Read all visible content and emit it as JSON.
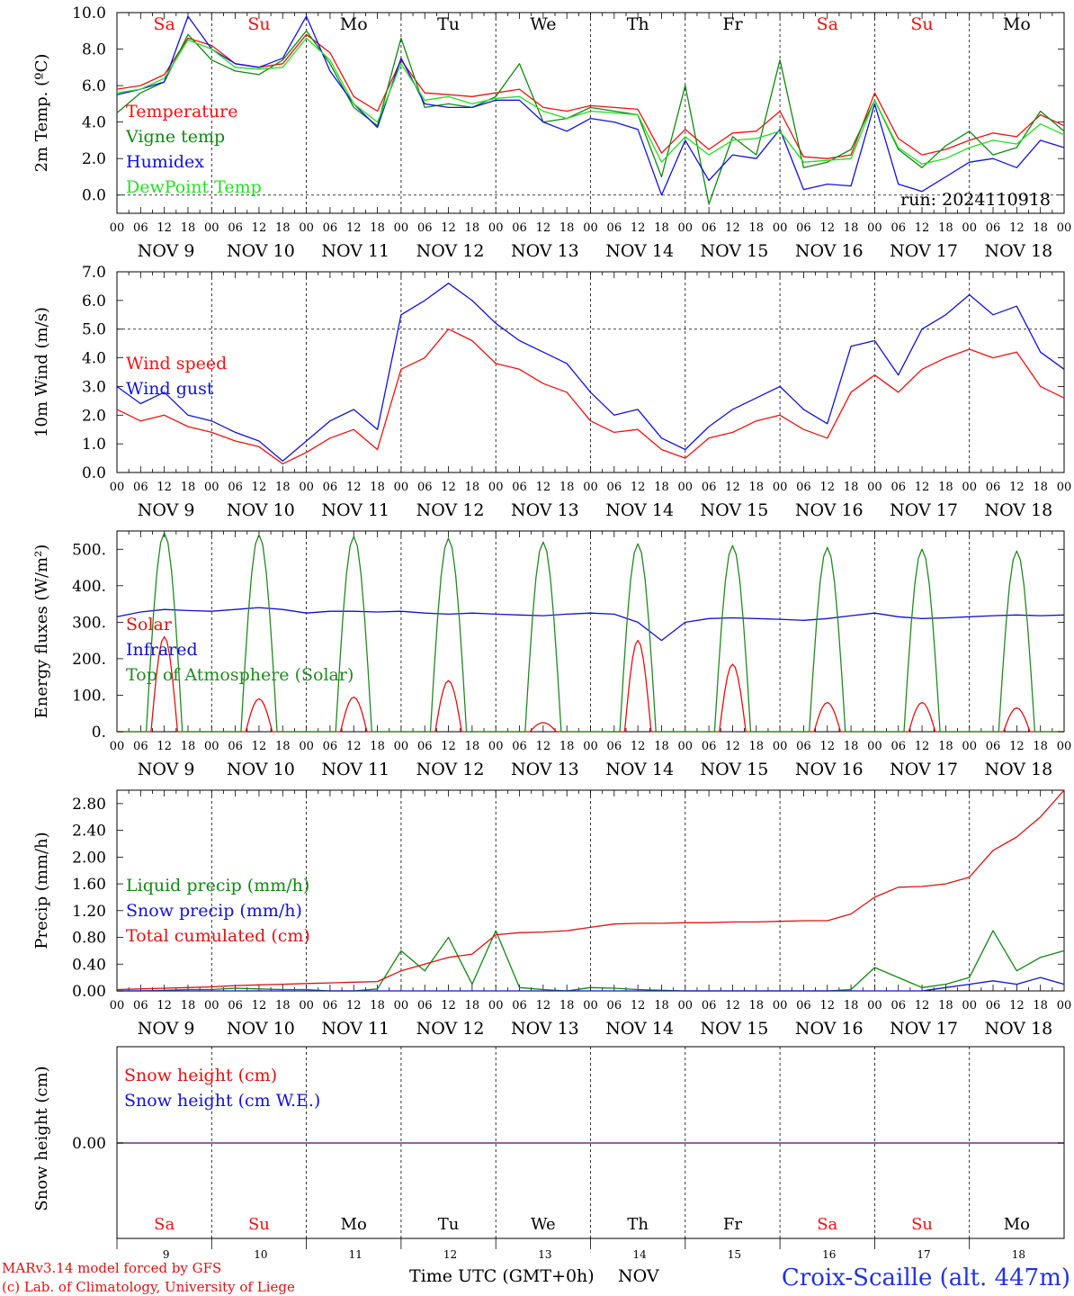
{
  "colors": {
    "temp": "#ee1111",
    "vigne": "#118811",
    "humidex": "#1111dd",
    "dewpoint": "#22dd22",
    "solar": "#dd1111",
    "infrared": "#1111cc",
    "toa": "#228822",
    "liquid": "#118811",
    "snowp": "#1111dd",
    "cum": "#dd1111",
    "snowh": "#dd1111",
    "snowwe": "#1111dd",
    "weekend": "#ee1111",
    "weekday": "#000000"
  },
  "days": {
    "abbr": [
      "Sa",
      "Su",
      "Mo",
      "Tu",
      "We",
      "Th",
      "Fr",
      "Sa",
      "Su",
      "Mo"
    ],
    "weekend": [
      true,
      true,
      false,
      false,
      false,
      false,
      false,
      true,
      true,
      false
    ],
    "dates": [
      "NOV  9",
      "NOV 10",
      "NOV 11",
      "NOV 12",
      "NOV 13",
      "NOV 14",
      "NOV 15",
      "NOV 16",
      "NOV 17",
      "NOV 18"
    ],
    "nums": [
      "9",
      "10",
      "11",
      "12",
      "13",
      "14",
      "15",
      "16",
      "17",
      "18"
    ],
    "hours": [
      "00",
      "06",
      "12",
      "18"
    ],
    "end_hour": "00"
  },
  "chart_data": [
    {
      "type": "line",
      "ylabel": "2m Temp. (ºC)",
      "ylim": [
        -1,
        10
      ],
      "yticks": [
        "10.0",
        "8.0",
        "6.0",
        "4.0",
        "2.0",
        "0.0"
      ],
      "ytick_values": [
        10,
        8,
        6,
        4,
        2,
        0
      ],
      "ref_line": 0,
      "annotation": "run: 2024110918",
      "series": [
        {
          "name": "Temperature",
          "color": "temp",
          "values": [
            5.8,
            6.0,
            6.6,
            8.6,
            8.2,
            7.2,
            7.0,
            7.2,
            8.8,
            7.8,
            5.4,
            4.6,
            7.4,
            5.6,
            5.5,
            5.4,
            5.6,
            5.8,
            4.8,
            4.6,
            4.9,
            4.8,
            4.7,
            2.3,
            3.6,
            2.5,
            3.4,
            3.5,
            4.6,
            2.1,
            2.0,
            2.2,
            5.6,
            3.1,
            2.2,
            2.5,
            3.0,
            3.4,
            3.2,
            4.4,
            3.8
          ]
        },
        {
          "name": "Vigne temp",
          "color": "vigne",
          "values": [
            4.5,
            5.6,
            6.2,
            8.8,
            7.4,
            6.8,
            6.6,
            7.4,
            9.0,
            7.2,
            4.8,
            3.8,
            8.6,
            4.8,
            5.0,
            4.8,
            5.4,
            7.2,
            4.0,
            4.2,
            4.8,
            4.6,
            4.4,
            1.0,
            6.0,
            -0.5,
            3.2,
            2.2,
            7.4,
            1.5,
            1.8,
            2.5,
            5.2,
            2.5,
            1.5,
            2.7,
            3.5,
            2.2,
            2.6,
            4.6,
            3.5
          ]
        },
        {
          "name": "Humidex",
          "color": "humidex",
          "values": [
            5.5,
            5.8,
            6.2,
            9.8,
            8.0,
            7.2,
            7.0,
            7.5,
            9.8,
            6.8,
            5.0,
            3.7,
            7.5,
            5.0,
            4.8,
            4.8,
            5.2,
            5.2,
            4.0,
            3.5,
            4.2,
            4.0,
            3.6,
            0.0,
            3.0,
            0.8,
            2.2,
            2.0,
            3.6,
            0.3,
            0.6,
            0.5,
            5.0,
            0.6,
            0.2,
            1.0,
            1.8,
            2.0,
            1.5,
            3.0,
            2.6
          ]
        },
        {
          "name": "DewPoint Temp",
          "color": "dewpoint",
          "values": [
            5.6,
            5.8,
            6.4,
            8.5,
            8.0,
            7.0,
            6.9,
            7.0,
            8.6,
            7.4,
            5.0,
            4.0,
            7.2,
            5.2,
            5.4,
            5.0,
            5.3,
            5.4,
            4.6,
            4.2,
            4.6,
            4.5,
            4.4,
            1.8,
            3.2,
            2.2,
            3.0,
            3.1,
            3.5,
            1.8,
            1.9,
            2.0,
            5.2,
            2.6,
            1.7,
            2.0,
            2.6,
            3.0,
            2.8,
            3.9,
            3.3
          ]
        }
      ]
    },
    {
      "type": "line",
      "ylabel": "10m Wind (m/s)",
      "ylim": [
        0,
        7
      ],
      "yticks": [
        "7.0",
        "6.0",
        "5.0",
        "4.0",
        "3.0",
        "2.0",
        "1.0",
        "0.0"
      ],
      "ytick_values": [
        7,
        6,
        5,
        4,
        3,
        2,
        1,
        0
      ],
      "ref_line": 5,
      "series": [
        {
          "name": "Wind speed",
          "color": "temp",
          "values": [
            2.2,
            1.8,
            2.0,
            1.6,
            1.4,
            1.1,
            0.9,
            0.3,
            0.7,
            1.2,
            1.5,
            0.8,
            3.6,
            4.0,
            5.0,
            4.6,
            3.8,
            3.6,
            3.1,
            2.8,
            1.8,
            1.4,
            1.5,
            0.8,
            0.5,
            1.2,
            1.4,
            1.8,
            2.0,
            1.5,
            1.2,
            2.8,
            3.4,
            2.8,
            3.6,
            4.0,
            4.3,
            4.0,
            4.2,
            3.0,
            2.6
          ]
        },
        {
          "name": "Wind gust",
          "color": "humidex",
          "values": [
            3.0,
            2.4,
            2.8,
            2.0,
            1.8,
            1.4,
            1.1,
            0.4,
            1.1,
            1.8,
            2.2,
            1.5,
            5.5,
            6.0,
            6.6,
            6.0,
            5.2,
            4.6,
            4.2,
            3.8,
            2.8,
            2.0,
            2.2,
            1.2,
            0.8,
            1.6,
            2.2,
            2.6,
            3.0,
            2.2,
            1.7,
            4.4,
            4.6,
            3.4,
            5.0,
            5.5,
            6.2,
            5.5,
            5.8,
            4.2,
            3.6
          ]
        }
      ]
    },
    {
      "type": "line",
      "ylabel": "Energy fluxes (W/m²)",
      "ylim": [
        0,
        550
      ],
      "yticks": [
        "500.",
        "400.",
        "300.",
        "200.",
        "100.",
        "0."
      ],
      "ytick_values": [
        500,
        400,
        300,
        200,
        100,
        0
      ],
      "series": [
        {
          "name": "Solar",
          "color": "solar",
          "peaks": [
            260,
            90,
            95,
            140,
            25,
            250,
            185,
            80,
            80,
            65
          ]
        },
        {
          "name": "Infrared",
          "color": "infrared",
          "values": [
            315,
            328,
            335,
            332,
            330,
            335,
            340,
            335,
            325,
            330,
            330,
            328,
            330,
            325,
            322,
            325,
            322,
            320,
            318,
            322,
            325,
            322,
            300,
            250,
            300,
            310,
            312,
            310,
            308,
            305,
            310,
            318,
            325,
            315,
            310,
            312,
            315,
            318,
            320,
            318,
            320
          ]
        },
        {
          "name": "Top of Atmosphere (Solar)",
          "color": "toa",
          "peaks": [
            545,
            540,
            535,
            530,
            520,
            515,
            510,
            505,
            500,
            495
          ]
        }
      ]
    },
    {
      "type": "line",
      "ylabel": "Precip (mm/h)",
      "ylim": [
        0,
        3
      ],
      "yticks": [
        "2.80",
        "2.40",
        "2.00",
        "1.60",
        "1.20",
        "0.80",
        "0.40",
        "0.00"
      ],
      "ytick_values": [
        2.8,
        2.4,
        2.0,
        1.6,
        1.2,
        0.8,
        0.4,
        0.0
      ],
      "series": [
        {
          "name": "Liquid precip (mm/h)",
          "color": "liquid",
          "values": [
            0,
            0,
            0.01,
            0.02,
            0.02,
            0.04,
            0.03,
            0.02,
            0.02,
            0,
            0,
            0.03,
            0.6,
            0.3,
            0.8,
            0.1,
            0.9,
            0.05,
            0.02,
            0,
            0.05,
            0.04,
            0.02,
            0.01,
            0,
            0,
            0,
            0,
            0,
            0,
            0,
            0.02,
            0.35,
            0.2,
            0.05,
            0.1,
            0.2,
            0.9,
            0.3,
            0.5,
            0.6
          ]
        },
        {
          "name": "Snow precip (mm/h)",
          "color": "snowp",
          "values": [
            0,
            0,
            0,
            0,
            0,
            0,
            0,
            0,
            0,
            0,
            0,
            0,
            0,
            0,
            0,
            0,
            0,
            0,
            0,
            0,
            0,
            0,
            0,
            0,
            0,
            0,
            0,
            0,
            0,
            0,
            0,
            0,
            0,
            0,
            0,
            0.05,
            0.1,
            0.15,
            0.1,
            0.2,
            0.1
          ]
        },
        {
          "name": "Total cumulated (cm)",
          "color": "cum",
          "values": [
            0.02,
            0.03,
            0.04,
            0.05,
            0.06,
            0.08,
            0.09,
            0.1,
            0.11,
            0.12,
            0.13,
            0.14,
            0.3,
            0.4,
            0.5,
            0.55,
            0.84,
            0.87,
            0.88,
            0.9,
            0.95,
            1.0,
            1.01,
            1.01,
            1.02,
            1.02,
            1.03,
            1.03,
            1.04,
            1.05,
            1.05,
            1.15,
            1.4,
            1.55,
            1.56,
            1.6,
            1.7,
            2.1,
            2.3,
            2.6,
            3.0
          ]
        }
      ]
    },
    {
      "type": "line",
      "ylabel": "Snow height (cm)",
      "ytick": "0.00",
      "series": [
        {
          "name": "Snow height (cm)",
          "color": "snowh"
        },
        {
          "name": "Snow height (cm W.E.)",
          "color": "snowwe"
        }
      ]
    }
  ],
  "footer": {
    "credit1": "MARv3.14 model forced by GFS",
    "credit2": "(c) Lab. of Climatology, University of Liege",
    "xlabel": "Time UTC (GMT+0h)",
    "month": "NOV",
    "station": "Croix-Scaille (alt. 447m)"
  }
}
